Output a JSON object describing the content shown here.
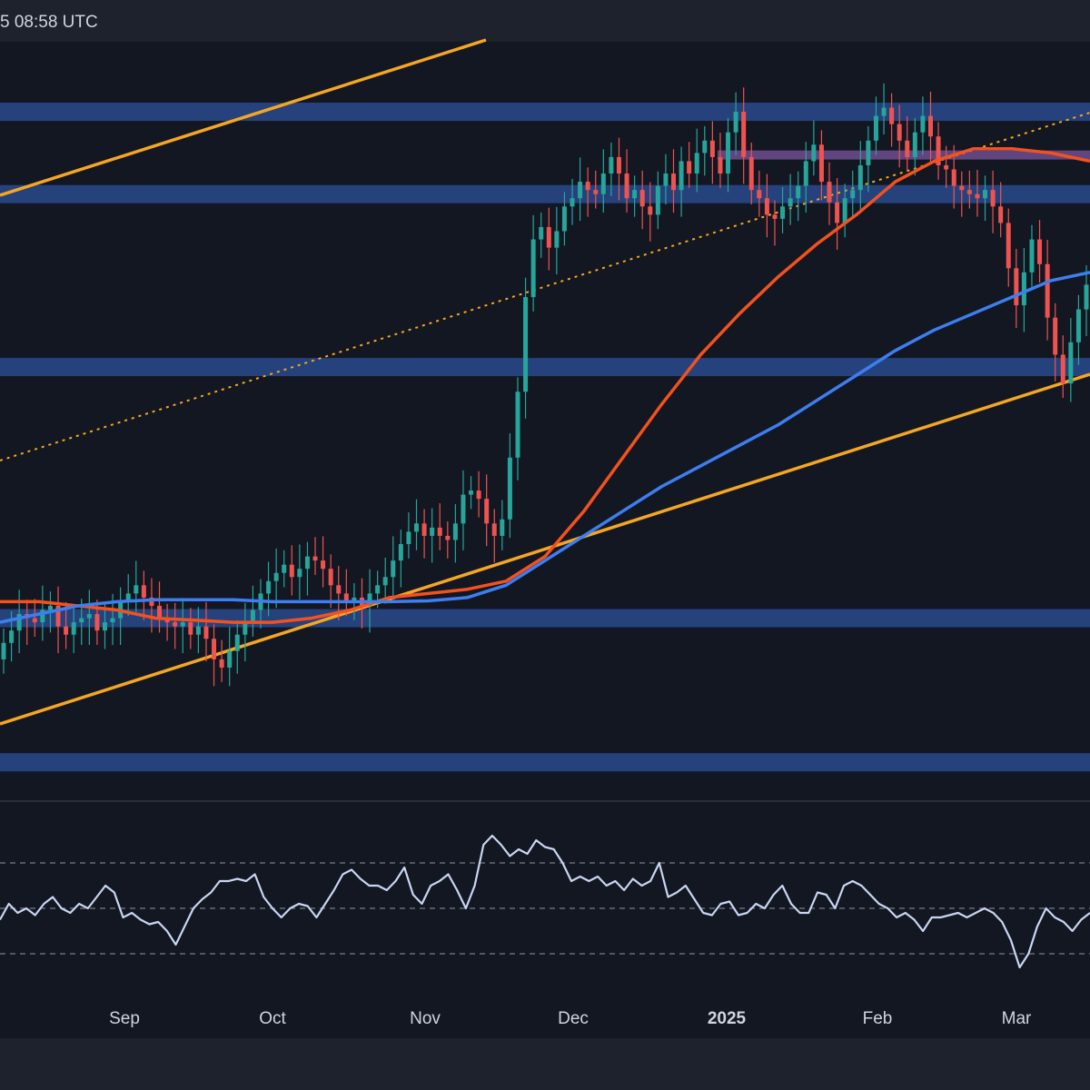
{
  "header": {
    "timestamp": "5 08:58 UTC"
  },
  "chart_data": {
    "type": "candlestick",
    "x_axis": {
      "tick_labels": [
        "Sep",
        "Oct",
        "Nov",
        "Dec",
        "2025",
        "Feb",
        "Mar"
      ],
      "bold_labels": [
        "2025"
      ],
      "range": [
        "Aug",
        "Mar"
      ]
    },
    "price_pane": {
      "candles_close": [
        8.4,
        8.7,
        9.1,
        9.0,
        8.9,
        9.2,
        9.3,
        8.8,
        8.6,
        8.9,
        9.0,
        9.1,
        8.7,
        8.9,
        9.0,
        9.4,
        9.6,
        9.8,
        9.5,
        9.3,
        9.0,
        8.9,
        8.8,
        8.9,
        8.6,
        8.8,
        8.5,
        8.0,
        7.8,
        8.2,
        8.6,
        8.9,
        9.2,
        9.6,
        9.9,
        10.1,
        10.3,
        10.0,
        10.2,
        10.5,
        10.4,
        10.2,
        9.8,
        9.6,
        9.4,
        9.5,
        9.3,
        9.6,
        9.8,
        10.0,
        10.4,
        10.8,
        11.1,
        11.3,
        11.0,
        11.2,
        11.0,
        10.9,
        11.3,
        12.0,
        12.1,
        11.9,
        11.3,
        11.0,
        11.4,
        12.9,
        14.5,
        16.8,
        18.2,
        18.5,
        18.0,
        18.4,
        19.0,
        19.2,
        19.6,
        19.4,
        19.3,
        19.8,
        20.2,
        19.8,
        19.2,
        19.4,
        19.0,
        18.8,
        19.5,
        19.8,
        19.4,
        20.1,
        19.8,
        20.3,
        20.6,
        20.2,
        19.8,
        20.8,
        21.3,
        20.2,
        19.4,
        19.2,
        18.8,
        18.7,
        19.0,
        19.2,
        19.5,
        20.1,
        20.5,
        19.6,
        19.1,
        18.6,
        19.2,
        19.4,
        20.0,
        20.6,
        21.2,
        21.4,
        21.0,
        20.6,
        20.2,
        20.8,
        21.2,
        20.7,
        20.0,
        19.9,
        19.5,
        19.4,
        19.3,
        19.2,
        19.4,
        19.0,
        18.6,
        17.5,
        16.6,
        17.4,
        18.2,
        17.6,
        16.3,
        15.4,
        14.7,
        15.7,
        16.5,
        17.1
      ],
      "candles_open": [
        8.0,
        8.4,
        8.7,
        9.1,
        9.0,
        8.9,
        9.2,
        9.3,
        8.8,
        8.6,
        8.9,
        9.0,
        9.1,
        8.7,
        8.9,
        9.0,
        9.4,
        9.6,
        9.8,
        9.5,
        9.3,
        9.0,
        8.9,
        8.8,
        8.9,
        8.6,
        8.8,
        8.5,
        8.0,
        7.8,
        8.2,
        8.6,
        8.9,
        9.2,
        9.6,
        9.9,
        10.1,
        10.3,
        10.0,
        10.2,
        10.5,
        10.4,
        10.2,
        9.8,
        9.6,
        9.4,
        9.5,
        9.3,
        9.6,
        9.8,
        10.0,
        10.4,
        10.8,
        11.1,
        11.3,
        11.0,
        11.2,
        11.0,
        10.9,
        11.3,
        12.0,
        12.1,
        11.9,
        11.3,
        11.0,
        11.4,
        12.9,
        14.5,
        16.8,
        18.2,
        18.5,
        18.0,
        18.4,
        19.0,
        19.2,
        19.6,
        19.4,
        19.3,
        19.8,
        20.2,
        19.8,
        19.2,
        19.4,
        19.0,
        18.8,
        19.5,
        19.8,
        19.4,
        20.1,
        19.8,
        20.3,
        20.6,
        20.2,
        19.8,
        20.8,
        21.3,
        20.2,
        19.4,
        19.2,
        18.8,
        18.7,
        19.0,
        19.2,
        19.5,
        20.1,
        20.5,
        19.6,
        19.1,
        18.6,
        19.2,
        19.4,
        20.0,
        20.6,
        21.2,
        21.4,
        21.0,
        20.6,
        20.2,
        20.8,
        21.2,
        20.7,
        20.0,
        19.9,
        19.5,
        19.4,
        19.3,
        19.2,
        19.4,
        19.0,
        18.6,
        17.5,
        16.6,
        17.4,
        18.2,
        17.6,
        16.3,
        15.4,
        14.7,
        15.7,
        16.5
      ],
      "ma_red": [
        9.4,
        9.4,
        9.3,
        9.2,
        9.0,
        8.95,
        8.9,
        8.9,
        9.0,
        9.2,
        9.5,
        9.6,
        9.7,
        9.9,
        10.5,
        11.6,
        12.9,
        14.2,
        15.4,
        16.4,
        17.3,
        18.1,
        18.8,
        19.6,
        20.1,
        20.4,
        20.4,
        20.3,
        20.1
      ],
      "ma_blue": [
        8.9,
        9.1,
        9.3,
        9.4,
        9.45,
        9.45,
        9.45,
        9.4,
        9.4,
        9.4,
        9.4,
        9.42,
        9.5,
        9.8,
        10.4,
        11.0,
        11.6,
        12.2,
        12.7,
        13.2,
        13.7,
        14.3,
        14.9,
        15.5,
        16.0,
        16.4,
        16.8,
        17.2,
        17.4
      ],
      "horizontal_zones": [
        {
          "y_center": 21.3,
          "color": "#2a4a8c"
        },
        {
          "y_center": 19.3,
          "color": "#2a4a8c"
        },
        {
          "y_center": 15.1,
          "color": "#2a4a8c"
        },
        {
          "y_center": 9.0,
          "color": "#2a4a8c"
        },
        {
          "y_center": 5.5,
          "color": "#2a4a8c"
        }
      ],
      "purple_zone": {
        "y_center": 20.25,
        "color": "#6a4a8a"
      },
      "ylim": [
        4.6,
        23.0
      ]
    },
    "rsi_pane": {
      "levels": [
        70,
        50,
        30
      ],
      "values": [
        45,
        52,
        48,
        50,
        47,
        52,
        55,
        50,
        48,
        52,
        50,
        55,
        60,
        57,
        46,
        48,
        45,
        43,
        44,
        40,
        34,
        42,
        50,
        54,
        57,
        62,
        62,
        63,
        62,
        65,
        55,
        50,
        46,
        50,
        52,
        51,
        46,
        52,
        58,
        65,
        67,
        63,
        60,
        60,
        58,
        62,
        68,
        56,
        52,
        60,
        62,
        65,
        58,
        50,
        60,
        78,
        82,
        78,
        73,
        76,
        74,
        80,
        77,
        76,
        70,
        62,
        64,
        62,
        64,
        60,
        62,
        58,
        63,
        60,
        62,
        70,
        55,
        57,
        60,
        54,
        48,
        47,
        52,
        53,
        47,
        48,
        52,
        50,
        56,
        60,
        52,
        48,
        48,
        57,
        56,
        50,
        60,
        62,
        60,
        56,
        52,
        50,
        46,
        48,
        45,
        40,
        46,
        46,
        47,
        48,
        46,
        48,
        50,
        48,
        44,
        36,
        24,
        30,
        42,
        50,
        46,
        44,
        40,
        45,
        48
      ]
    }
  },
  "colors": {
    "background": "#131722",
    "bull": "#26a69a",
    "bear": "#ef5350",
    "ma_red": "#f4511e",
    "ma_blue": "#3d7ef0",
    "channel": "#f5a623",
    "rsi_line": "#c9d6f2"
  }
}
